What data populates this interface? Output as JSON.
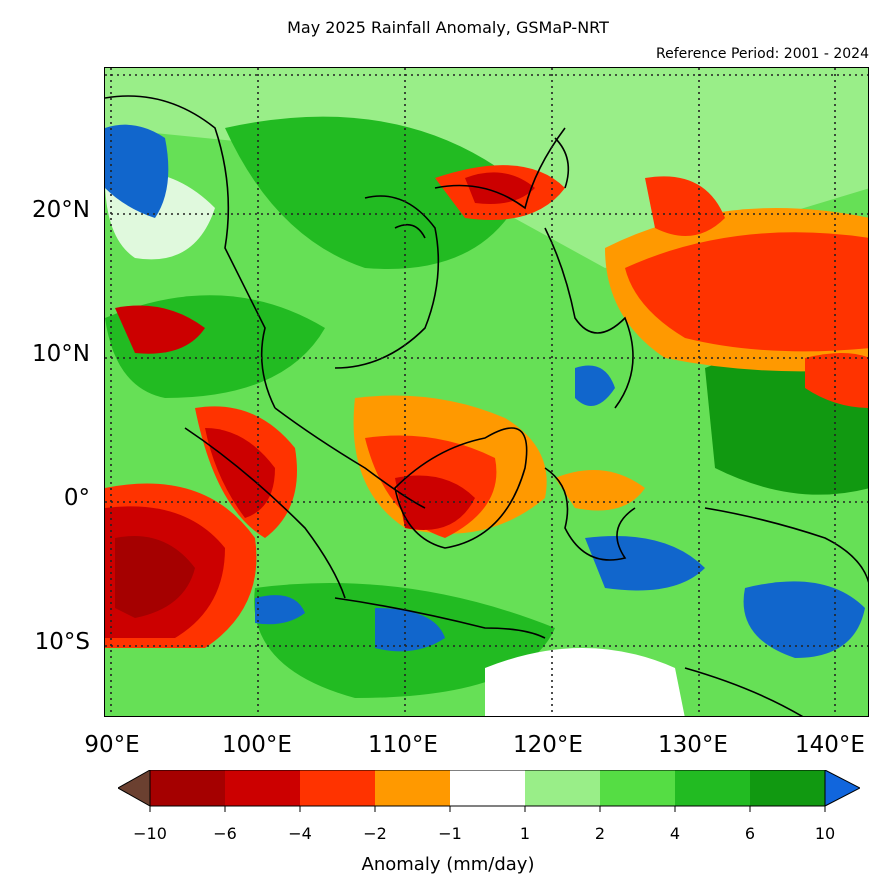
{
  "title": "May 2025 Rainfall Anomaly, GSMaP-NRT",
  "subtitle": "Reference Period: 2001 - 2024",
  "map": {
    "lat_ticks": [
      "20°N",
      "10°N",
      "0°",
      "10°S"
    ],
    "lon_ticks": [
      "90°E",
      "100°E",
      "110°E",
      "120°E",
      "130°E",
      "140°E"
    ],
    "lon_range": [
      90,
      142
    ],
    "lat_range": [
      -15,
      30
    ],
    "grid": "dotted",
    "colors": {
      "severe_dry": "#a50000",
      "very_dry": "#cc0000",
      "dry": "#ff3300",
      "slightly_dry": "#ff9900",
      "normal": "#ffffff",
      "slightly_wet": "#99ee88",
      "wet": "#55dd44",
      "very_wet": "#22bb22",
      "wetter": "#119911",
      "extreme_wet": "#1166cc",
      "coast": "#000000"
    }
  },
  "colorbar": {
    "title": "Anomaly (mm/day)",
    "tick_labels": [
      "−10",
      "−6",
      "−4",
      "−2",
      "−1",
      "1",
      "2",
      "4",
      "6",
      "10"
    ],
    "colors": [
      "#a50000",
      "#cc0000",
      "#ff3300",
      "#ff9900",
      "#ffffff",
      "#99ee88",
      "#55dd44",
      "#22bb22",
      "#119911"
    ],
    "under_color": "#6b4030",
    "over_color": "#1166dd"
  }
}
